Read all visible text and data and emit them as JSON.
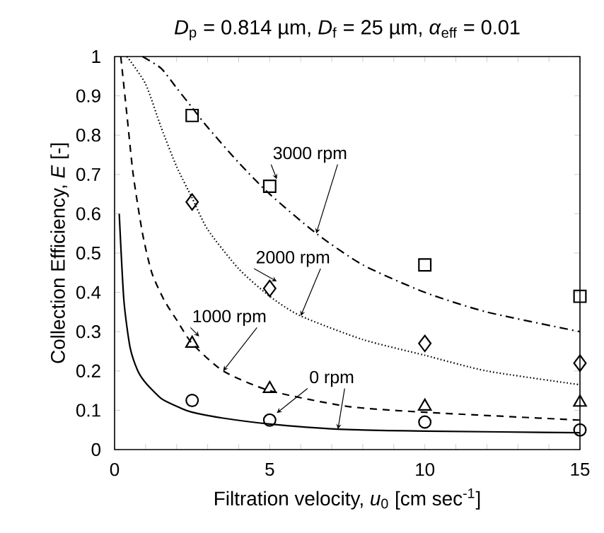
{
  "chart_data": {
    "type": "scatter",
    "title": "*D*$_{p}$ = 0.814 µm, *D*$_{f}$ = 25 µm, *α*$_{eff}$ = 0.01",
    "xlabel": "Filtration velocity, *u*$_{0}$ [cm sec$^{-1}$]",
    "ylabel": "Collection Efficiency, *E* [-]",
    "xlim": [
      0,
      15
    ],
    "ylim": [
      0,
      1
    ],
    "xticks": [
      0,
      {
        "value": 1,
        "label": null
      },
      {
        "value": 2,
        "label": null
      },
      {
        "value": 3,
        "label": null
      },
      {
        "value": 4,
        "label": null
      },
      5,
      {
        "value": 6,
        "label": null
      },
      {
        "value": 7,
        "label": null
      },
      {
        "value": 8,
        "label": null
      },
      {
        "value": 9,
        "label": null
      },
      10,
      {
        "value": 11,
        "label": null
      },
      {
        "value": 12,
        "label": null
      },
      {
        "value": 13,
        "label": null
      },
      {
        "value": 14,
        "label": null
      },
      15
    ],
    "yticks": [
      0,
      0.1,
      0.2,
      0.3,
      0.4,
      0.5,
      0.6,
      0.7,
      0.8,
      0.9,
      1
    ],
    "grid": false,
    "series": [
      {
        "type": "line",
        "color": "#000000",
        "line_style": "dashdot",
        "marker": "none",
        "x": [
          0.9,
          1.5,
          2,
          2.5,
          3,
          4,
          5,
          6.5,
          8,
          10,
          12,
          15
        ],
        "values": [
          1,
          0.97,
          0.92,
          0.87,
          0.82,
          0.73,
          0.65,
          0.55,
          0.47,
          0.4,
          0.35,
          0.3
        ]
      },
      {
        "type": "line",
        "color": "#000000",
        "line_style": "dotted",
        "marker": "none",
        "x": [
          0.4,
          1,
          1.5,
          2,
          2.5,
          3,
          4,
          5,
          6,
          8,
          10,
          12,
          15
        ],
        "values": [
          1,
          0.93,
          0.82,
          0.72,
          0.64,
          0.56,
          0.46,
          0.39,
          0.34,
          0.28,
          0.24,
          0.2,
          0.165
        ]
      },
      {
        "type": "line",
        "color": "#000000",
        "line_style": "dashed",
        "marker": "none",
        "x": [
          0.2,
          0.4,
          0.6,
          0.9,
          1.2,
          1.6,
          2,
          2.5,
          3.5,
          5,
          7.5,
          10,
          15
        ],
        "values": [
          1,
          0.85,
          0.7,
          0.55,
          0.45,
          0.38,
          0.33,
          0.27,
          0.2,
          0.15,
          0.11,
          0.095,
          0.075
        ]
      },
      {
        "type": "line",
        "color": "#000000",
        "line_style": "solid",
        "marker": "none",
        "x": [
          0.15,
          0.3,
          0.5,
          0.75,
          1,
          1.5,
          2,
          2.5,
          3.5,
          5,
          7.2,
          10,
          15
        ],
        "values": [
          0.6,
          0.38,
          0.26,
          0.2,
          0.17,
          0.13,
          0.11,
          0.095,
          0.08,
          0.065,
          0.052,
          0.047,
          0.043
        ]
      },
      {
        "color": "#000000",
        "marker": "square",
        "x": [
          2.5,
          5,
          10,
          15
        ],
        "values": [
          0.85,
          0.67,
          0.47,
          0.39
        ]
      },
      {
        "color": "#000000",
        "marker": "diamond",
        "x": [
          2.5,
          5,
          10,
          15
        ],
        "values": [
          0.63,
          0.41,
          0.27,
          0.22
        ]
      },
      {
        "color": "#000000",
        "marker": "triangle",
        "x": [
          2.5,
          5,
          10,
          15
        ],
        "values": [
          0.27,
          0.155,
          0.11,
          0.12
        ]
      },
      {
        "color": "#000000",
        "marker": "circle",
        "x": [
          2.5,
          5,
          10,
          15
        ],
        "values": [
          0.125,
          0.075,
          0.07,
          0.05
        ]
      }
    ],
    "annotations": [
      {
        "text": "3000 rpm",
        "x": 6.5,
        "y": 0.55
      },
      {
        "text": "2000 rpm",
        "x": 6,
        "y": 0.34
      },
      {
        "text": "1000 rpm",
        "x": 3.5,
        "y": 0.2
      },
      {
        "text": "0 rpm",
        "x": 7.2,
        "y": 0.052
      }
    ]
  }
}
